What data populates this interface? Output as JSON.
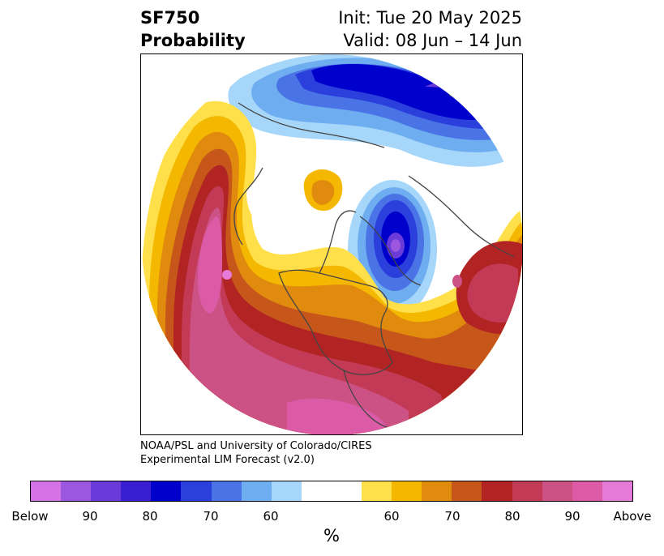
{
  "title": {
    "left_line1": "SF750",
    "left_line2": "Probability",
    "right_line1": "Init: Tue 20 May 2025",
    "right_line2": "Valid: 08 Jun – 14 Jun"
  },
  "credit": {
    "line1": "NOAA/PSL and University of Colorado/CIRES",
    "line2": "Experimental LIM Forecast (v2.0)"
  },
  "colorbar": {
    "unit": "%",
    "colors": [
      "#d573e6",
      "#9b57e0",
      "#6a3bd8",
      "#3a1fd2",
      "#0000cc",
      "#2a3fdc",
      "#4a73e6",
      "#6eaef0",
      "#a6d6fa",
      "#ffffff",
      "#ffe04a",
      "#f5b800",
      "#e08a0e",
      "#c6561a",
      "#b22323",
      "#c33a56",
      "#cc5286",
      "#dc5ba6",
      "#e67ad8"
    ],
    "tick_labels": [
      "Below",
      "90",
      "80",
      "70",
      "60",
      "60",
      "70",
      "80",
      "90",
      "Above"
    ]
  },
  "map": {
    "projection": "north polar stereographic",
    "field": "SF750 probability",
    "land_outline_color": "#444444"
  }
}
